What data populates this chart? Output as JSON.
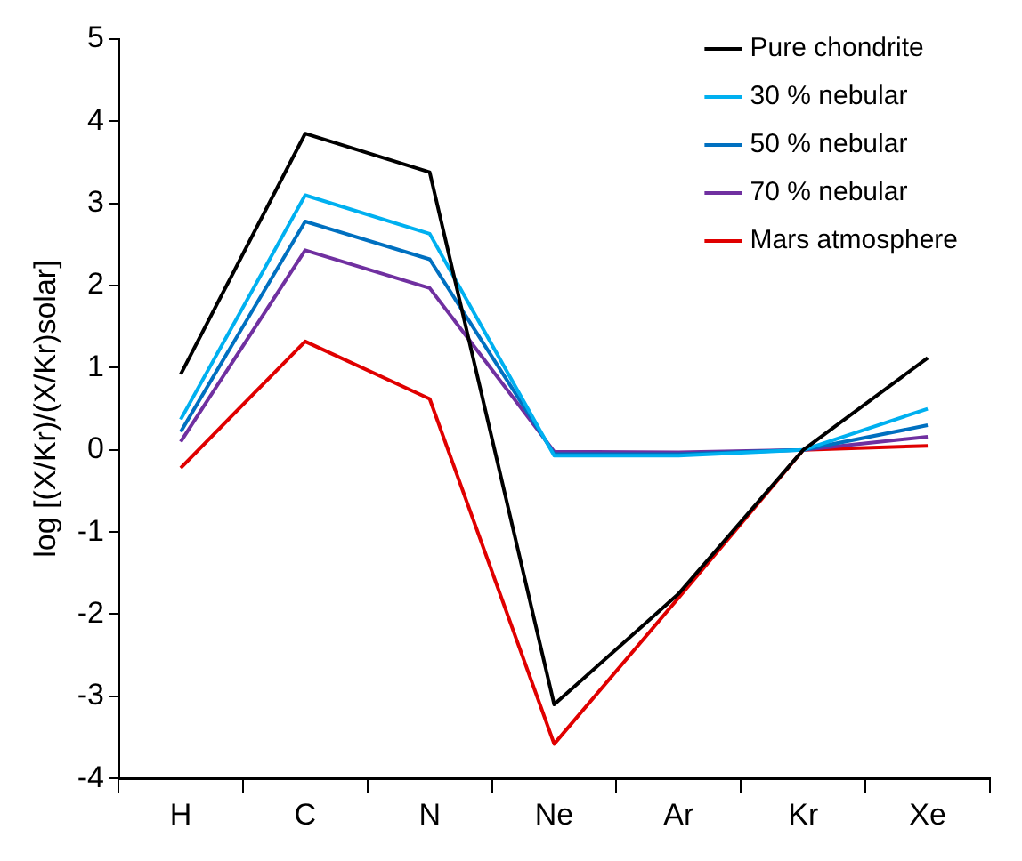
{
  "chart_data": {
    "type": "line",
    "ylabel": "log [(X/Kr)/(X/Kr)solar]",
    "categories": [
      "H",
      "C",
      "N",
      "Ne",
      "Ar",
      "Kr",
      "Xe"
    ],
    "series": [
      {
        "name": "Pure chondrite",
        "color": "#000000",
        "values": [
          0.92,
          3.85,
          3.38,
          -3.1,
          -1.75,
          0,
          1.12
        ]
      },
      {
        "name": "30 % nebular",
        "color": "#00b0f0",
        "values": [
          0.37,
          3.1,
          2.63,
          -0.07,
          -0.07,
          0,
          0.5
        ]
      },
      {
        "name": "50 % nebular",
        "color": "#0070c0",
        "values": [
          0.22,
          2.78,
          2.32,
          -0.05,
          -0.05,
          0,
          0.3
        ]
      },
      {
        "name": "70 % nebular",
        "color": "#7030a0",
        "values": [
          0.1,
          2.43,
          1.97,
          -0.02,
          -0.03,
          0,
          0.16
        ]
      },
      {
        "name": "Mars atmosphere",
        "color": "#e00000",
        "values": [
          -0.22,
          1.32,
          0.62,
          -3.58,
          -1.8,
          0,
          0.05
        ]
      }
    ],
    "ylim": [
      -4,
      5
    ],
    "yticks": [
      -4,
      -3,
      -2,
      -1,
      0,
      1,
      2,
      3,
      4,
      5
    ],
    "grid": false,
    "legend": "top right",
    "marker": "none",
    "line_style": "solid"
  }
}
